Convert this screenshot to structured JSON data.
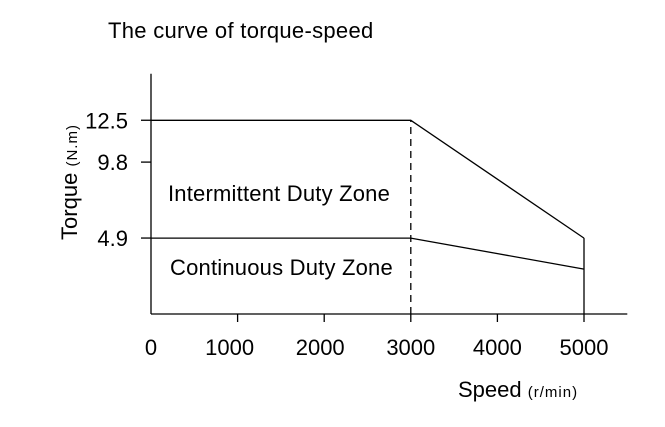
{
  "chart_data": {
    "type": "line",
    "title": "The curve of torque-speed",
    "xlabel": "Speed",
    "xunit": "(r/min)",
    "ylabel": "Torque",
    "yunit": "(N.m)",
    "xlim": [
      0,
      5500
    ],
    "ylim": [
      0,
      15.5
    ],
    "x_ticks": [
      0,
      1000,
      2000,
      3000,
      4000,
      5000
    ],
    "x_tick_labels": [
      "0",
      "1000",
      "2000",
      "3000",
      "4000",
      "5000"
    ],
    "y_ticks": [
      4.9,
      9.8,
      12.5
    ],
    "y_tick_labels": [
      "4.9",
      "9.8",
      "12.5"
    ],
    "grid": false,
    "series": [
      {
        "points": [
          [
            0,
            12.5
          ],
          [
            3000,
            12.5
          ],
          [
            5000,
            4.9
          ]
        ]
      },
      {
        "points": [
          [
            0,
            4.9
          ],
          [
            3000,
            4.9
          ],
          [
            5000,
            2.9
          ]
        ]
      }
    ],
    "reference_lines": [
      {
        "x": 3000,
        "y_from": 0,
        "y_to": 12.5,
        "style": "dashed"
      },
      {
        "x": 5000,
        "y_from": 0,
        "y_to": 4.9,
        "style": "solid"
      }
    ],
    "annotations": [
      {
        "text": "Intermittent Duty Zone"
      },
      {
        "text": "Continuous Duty Zone"
      }
    ]
  }
}
